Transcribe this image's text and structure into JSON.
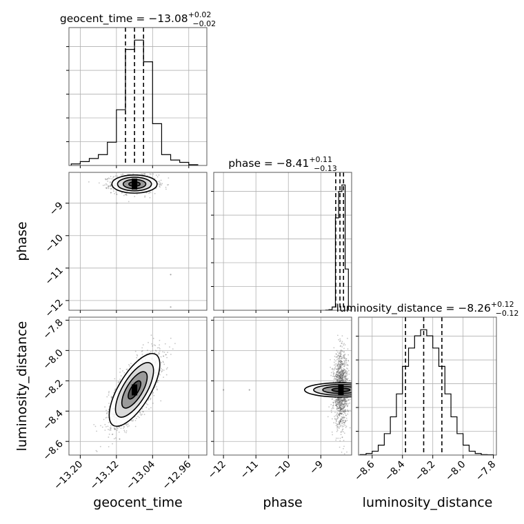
{
  "chart_data": {
    "type": "corner",
    "parameters": [
      {
        "name": "geocent_time",
        "range": [
          -13.225,
          -12.92
        ],
        "ticks": [
          -13.2,
          -13.12,
          -13.04,
          -12.96
        ],
        "tick_labels": [
          "−13.20",
          "−13.12",
          "−13.04",
          "−12.96"
        ]
      },
      {
        "name": "phase",
        "range": [
          -12.3,
          -8.05
        ],
        "ticks": [
          -12,
          -11,
          -10,
          -9
        ],
        "tick_labels": [
          "−12",
          "−11",
          "−10",
          "−9"
        ]
      },
      {
        "name": "luminosity_distance",
        "range": [
          -8.69,
          -7.78
        ],
        "ticks": [
          -8.6,
          -8.4,
          -8.2,
          -8.0,
          -7.8
        ],
        "tick_labels": [
          "−8.6",
          "−8.4",
          "−8.2",
          "−8.0",
          "−7.8"
        ]
      }
    ],
    "titles": [
      {
        "name": "geocent_time",
        "value": "−13.08",
        "plus": "+0.02",
        "minus": "−0.02",
        "prefix": "geocent_time = "
      },
      {
        "name": "phase",
        "value": "−8.41",
        "plus": "+0.11",
        "minus": "−0.13",
        "prefix": "phase = "
      },
      {
        "name": "luminosity_distance",
        "value": "−8.26",
        "plus": "+0.12",
        "minus": "−0.12",
        "prefix": "luminosity_distance = "
      }
    ],
    "axis_labels": {
      "x": [
        "geocent_time",
        "phase",
        "luminosity_distance"
      ],
      "y": [
        "phase",
        "luminosity_distance"
      ]
    },
    "quantile_lines": [
      [
        -13.1,
        -13.08,
        -13.06
      ],
      [
        -8.54,
        -8.41,
        -8.3
      ],
      [
        -8.38,
        -8.26,
        -8.14
      ]
    ],
    "histograms": [
      {
        "bin_edges": [
          -13.22,
          -13.2,
          -13.18,
          -13.16,
          -13.14,
          -13.12,
          -13.1,
          -13.08,
          -13.06,
          -13.04,
          -13.02,
          -13.0,
          -12.98,
          -12.96,
          -12.94
        ],
        "counts": [
          2,
          5,
          9,
          14,
          30,
          72,
          150,
          162,
          134,
          54,
          14,
          7,
          4,
          1
        ]
      },
      {
        "bin_edges": [
          -8.85,
          -8.75,
          -8.65,
          -8.55,
          -8.45,
          -8.35,
          -8.25,
          -8.15
        ],
        "counts": [
          0.5,
          2,
          10,
          280,
          360,
          380,
          125
        ]
      },
      {
        "bin_edges": [
          -8.68,
          -8.64,
          -8.6,
          -8.56,
          -8.52,
          -8.48,
          -8.44,
          -8.4,
          -8.36,
          -8.32,
          -8.28,
          -8.24,
          -8.2,
          -8.16,
          -8.12,
          -8.08,
          -8.04,
          -8.0,
          -7.96,
          -7.92,
          -7.88,
          -7.84,
          -7.8
        ],
        "counts": [
          0.3,
          1.0,
          2.5,
          6.5,
          14,
          25,
          40,
          58,
          70,
          78,
          82,
          78,
          70,
          58,
          40,
          25,
          14,
          6.5,
          2.5,
          1.0,
          0.3,
          0.2
        ]
      }
    ],
    "scatter": [
      {
        "xi": 0,
        "yi": 1,
        "mean": [
          -13.08,
          -8.41
        ],
        "std": [
          0.025,
          0.14
        ],
        "corr": 0.0,
        "n": 1100,
        "outliers": [
          [
            -13.0,
            -11.2
          ],
          [
            -13.0,
            -12.2
          ]
        ]
      },
      {
        "xi": 0,
        "yi": 2,
        "mean": [
          -13.08,
          -8.26
        ],
        "std": [
          0.028,
          0.12
        ],
        "corr": 0.7,
        "n": 1500,
        "outliers": []
      },
      {
        "xi": 1,
        "yi": 2,
        "mean": [
          -8.38,
          -8.26
        ],
        "std": [
          0.11,
          0.12
        ],
        "corr": 0.0,
        "n": 1300,
        "outliers": [
          [
            -11.2,
            -8.26
          ],
          [
            -12.0,
            -8.26
          ]
        ]
      }
    ],
    "contour_levels_sigma": [
      0.5,
      1.0,
      1.5,
      2.0
    ],
    "grid": true,
    "colors": {
      "line": "#000000",
      "grid": "#b0b0b0",
      "points": "#555555"
    }
  }
}
